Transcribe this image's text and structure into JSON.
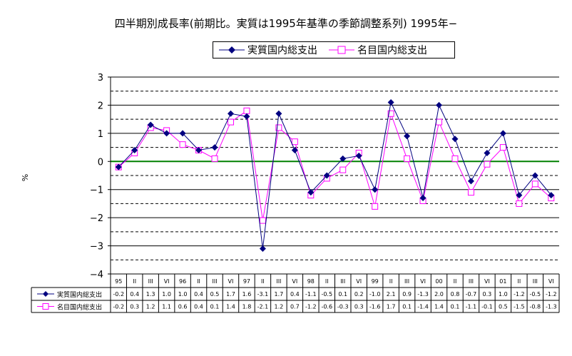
{
  "title": "四半期別成長率(前期比。実質は1995年基準の季節調整系列) 1995年−",
  "chart_data": {
    "type": "line",
    "title": "四半期別成長率(前期比。実質は1995年基準の季節調整系列) 1995年−",
    "ylabel": "%",
    "xlabel": "",
    "ylim": [
      -4,
      3
    ],
    "yticks": [
      "3",
      "2",
      "1",
      "0",
      "−1",
      "−2",
      "−3",
      "−4"
    ],
    "categories": [
      "95",
      "II",
      "III",
      "VI",
      "96",
      "II",
      "III",
      "VI",
      "97",
      "II",
      "III",
      "VI",
      "98",
      "II",
      "III",
      "VI",
      "99",
      "II",
      "III",
      "VI",
      "00",
      "II",
      "III",
      "VI",
      "01",
      "II",
      "III",
      "VI"
    ],
    "grid": true,
    "legend": "top-right",
    "zero_line_color": "#008000",
    "series": [
      {
        "name": "実質国内総支出",
        "color": "#000080",
        "marker": "diamond",
        "values": [
          -0.2,
          0.4,
          1.3,
          1.0,
          1.0,
          0.4,
          0.5,
          1.7,
          1.6,
          -3.1,
          1.7,
          0.4,
          -1.1,
          -0.5,
          0.1,
          0.2,
          -1.0,
          2.1,
          0.9,
          -1.3,
          2.0,
          0.8,
          -0.7,
          0.3,
          1.0,
          -1.2,
          -0.5,
          -1.2
        ],
        "labels": [
          "-0.2",
          "0.4",
          "1.3",
          "1.0",
          "1.0",
          "0.4",
          "0.5",
          "1.7",
          "1.6",
          "-3.1",
          "1.7",
          "0.4",
          "-1.1",
          "-0.5",
          "0.1",
          "0.2",
          "-1.0",
          "2.1",
          "0.9",
          "-1.3",
          "2.0",
          "0.8",
          "-0.7",
          "0.3",
          "1.0",
          "-1.2",
          "-0.5",
          "-1.2"
        ]
      },
      {
        "name": "名目国内総支出",
        "color": "#ff00ff",
        "marker": "square",
        "values": [
          -0.2,
          0.3,
          1.2,
          1.1,
          0.6,
          0.4,
          0.1,
          1.4,
          1.8,
          -2.1,
          1.2,
          0.7,
          -1.2,
          -0.6,
          -0.3,
          0.3,
          -1.6,
          1.7,
          0.1,
          -1.4,
          1.4,
          0.1,
          -1.1,
          -0.1,
          0.5,
          -1.5,
          -0.8,
          -1.3
        ],
        "labels": [
          "-0.2",
          "0.3",
          "1.2",
          "1.1",
          "0.6",
          "0.4",
          "0.1",
          "1.4",
          "1.8",
          "-2.1",
          "1.2",
          "0.7",
          "-1.2",
          "-0.6",
          "-0.3",
          "0.3",
          "-1.6",
          "1.7",
          "0.1",
          "-1.4",
          "1.4",
          "0.1",
          "-1.1",
          "-0.1",
          "0.5",
          "-1.5",
          "-0.8",
          "-1.3"
        ]
      }
    ]
  }
}
